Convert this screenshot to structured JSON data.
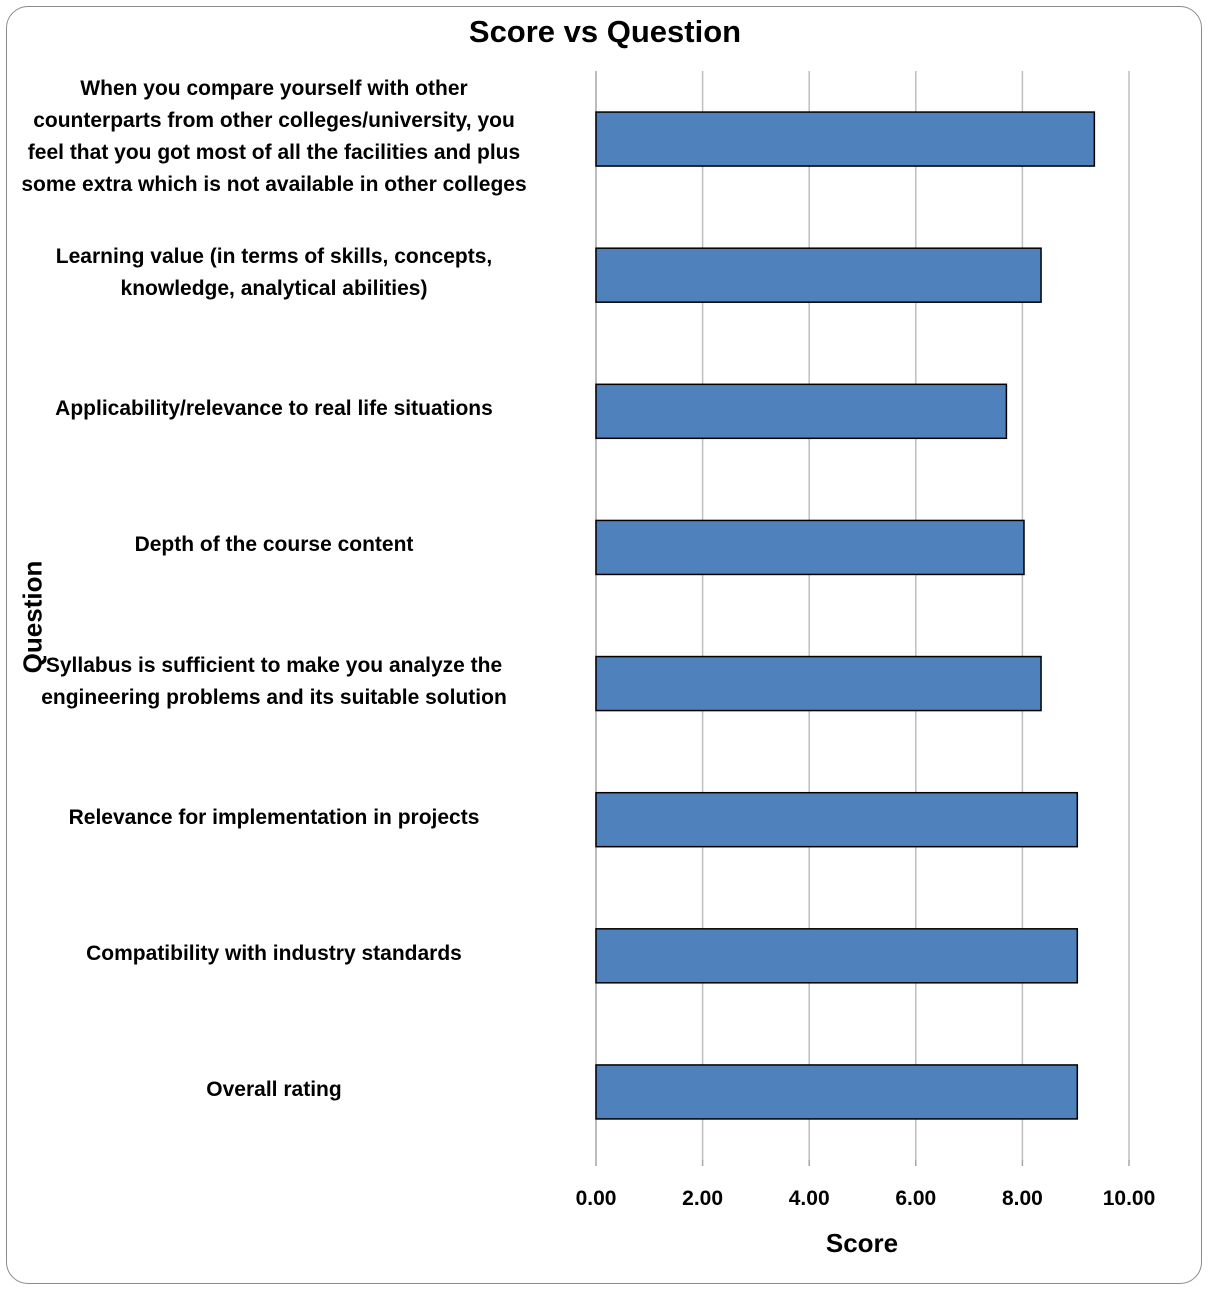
{
  "chart_data": {
    "type": "bar",
    "orientation": "horizontal",
    "title": "Score vs Question",
    "xlabel": "Score",
    "ylabel": "Question",
    "xlim": [
      0,
      10
    ],
    "x_ticks": [
      "0.00",
      "2.00",
      "4.00",
      "6.00",
      "8.00",
      "10.00"
    ],
    "grid": "vertical",
    "legend": "none",
    "bar_color": "#4f81bd",
    "bar_border_color": "#000000",
    "categories": [
      [
        "When you compare yourself with other",
        "counterparts from other colleges/university, you",
        "feel that you got most of all the facilities and plus",
        "some extra which is not available in other colleges"
      ],
      [
        "Learning value (in terms of skills, concepts,",
        "knowledge, analytical abilities)"
      ],
      [
        "Applicability/relevance to real life situations"
      ],
      [
        "Depth of the course content"
      ],
      [
        "Syllabus is sufficient to make you analyze the",
        "engineering problems and its suitable solution"
      ],
      [
        "Relevance for implementation in projects"
      ],
      [
        "Compatibility with industry standards"
      ],
      [
        "Overall rating"
      ]
    ],
    "values": [
      9.35,
      8.35,
      7.7,
      8.03,
      8.35,
      9.03,
      9.03,
      9.03
    ]
  }
}
